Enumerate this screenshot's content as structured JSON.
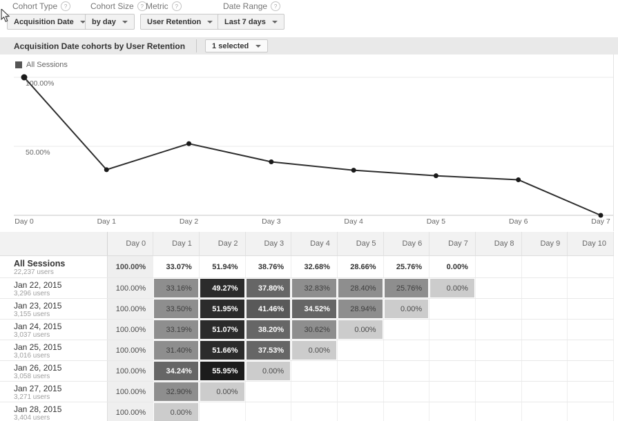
{
  "controls": [
    {
      "label": "Cohort Type",
      "value": "Acquisition Date"
    },
    {
      "label": "Cohort Size",
      "value": "by day"
    },
    {
      "label": "Metric",
      "value": "User Retention"
    },
    {
      "label": "Date Range",
      "value": "Last 7 days"
    }
  ],
  "panel": {
    "title": "Acquisition Date cohorts by User Retention",
    "selector_label": "1 selected"
  },
  "chart_data": {
    "type": "line",
    "categories": [
      "Day 0",
      "Day 1",
      "Day 2",
      "Day 3",
      "Day 4",
      "Day 5",
      "Day 6",
      "Day 7"
    ],
    "series": [
      {
        "name": "All Sessions",
        "color": "#2d2d2d",
        "values": [
          100.0,
          33.07,
          51.94,
          38.76,
          32.68,
          28.66,
          25.76,
          0.0
        ]
      }
    ],
    "title": "Acquisition Date cohorts by User Retention",
    "xlabel": "",
    "ylabel": "",
    "ylim": [
      0,
      100
    ],
    "y_ticks": [
      {
        "value": 100,
        "label": "100.00%"
      },
      {
        "value": 50,
        "label": "50.00%"
      }
    ],
    "grid": true,
    "legend_position": "top-left"
  },
  "table": {
    "columns": [
      "",
      "Day 0",
      "Day 1",
      "Day 2",
      "Day 3",
      "Day 4",
      "Day 5",
      "Day 6",
      "Day 7",
      "Day 8",
      "Day 9",
      "Day 10"
    ],
    "summary_row": {
      "label": "All Sessions",
      "sublabel": "22,237 users",
      "values": [
        100.0,
        33.07,
        51.94,
        38.76,
        32.68,
        28.66,
        25.76,
        0.0
      ]
    },
    "rows": [
      {
        "label": "Jan 22, 2015",
        "sublabel": "3,296 users",
        "values": [
          100.0,
          33.16,
          49.27,
          37.8,
          32.83,
          28.4,
          25.76,
          0.0
        ]
      },
      {
        "label": "Jan 23, 2015",
        "sublabel": "3,155 users",
        "values": [
          100.0,
          33.5,
          51.95,
          41.46,
          34.52,
          28.94,
          0.0
        ]
      },
      {
        "label": "Jan 24, 2015",
        "sublabel": "3,037 users",
        "values": [
          100.0,
          33.19,
          51.07,
          38.2,
          30.62,
          0.0
        ]
      },
      {
        "label": "Jan 25, 2015",
        "sublabel": "3,016 users",
        "values": [
          100.0,
          31.4,
          51.66,
          37.53,
          0.0
        ]
      },
      {
        "label": "Jan 26, 2015",
        "sublabel": "3,058 users",
        "values": [
          100.0,
          34.24,
          55.95,
          0.0
        ]
      },
      {
        "label": "Jan 27, 2015",
        "sublabel": "3,271 users",
        "values": [
          100.0,
          32.9,
          0.0
        ]
      },
      {
        "label": "Jan 28, 2015",
        "sublabel": "3,404 users",
        "values": [
          100.0,
          0.0
        ]
      }
    ],
    "shade_scale": [
      {
        "max": 0.005,
        "bg": "#cccccc",
        "text": "#4a4a4a",
        "bold": false
      },
      {
        "max": 34,
        "bg": "#8e8e8e",
        "text": "#3d3d3d",
        "bold": false
      },
      {
        "max": 40,
        "bg": "#666666",
        "text": "#ffffff",
        "bold": true
      },
      {
        "max": 45,
        "bg": "#595959",
        "text": "#ffffff",
        "bold": true
      },
      {
        "max": 54,
        "bg": "#2b2b2b",
        "text": "#ffffff",
        "bold": true
      },
      {
        "max": 1000,
        "bg": "#1c1c1c",
        "text": "#ffffff",
        "bold": true
      }
    ],
    "day0_bg": "#efefef"
  }
}
